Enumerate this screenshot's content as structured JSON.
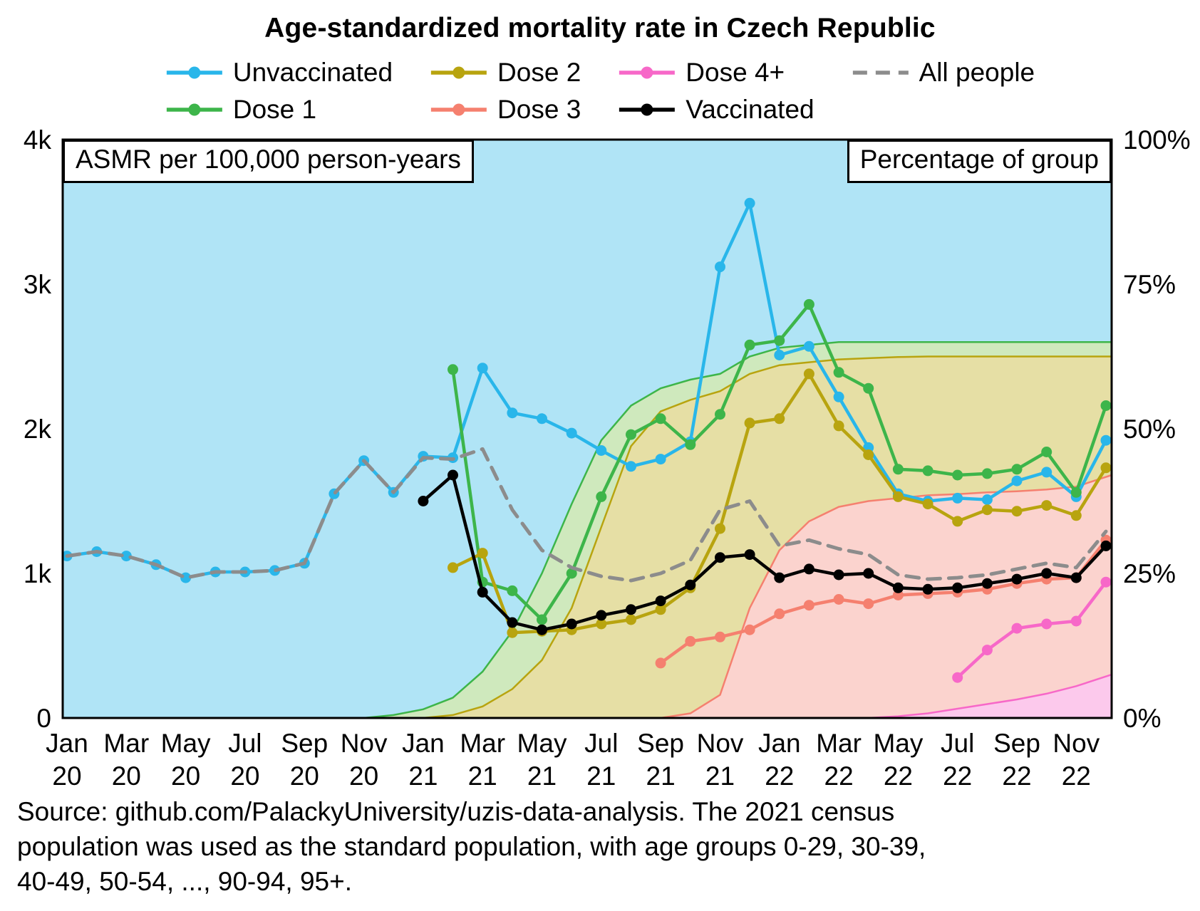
{
  "source_lines": [
    "Source: github.com/PalackyUniversity/uzis-data-analysis. The 2021 census",
    "population was used as the standard population, with age groups 0-29, 30-39,",
    "40-49, 50-54, ..., 90-94, 95+."
  ],
  "chart_data": {
    "type": "line",
    "title": "Age-standardized mortality rate in Czech Republic",
    "left_axis_label": "ASMR per 100,000 person-years",
    "right_axis_label": "Percentage of group",
    "legend_position": "top",
    "grid": false,
    "left_ylim": [
      0,
      4000
    ],
    "right_ylim": [
      0,
      100
    ],
    "left_yticks": [
      {
        "value": 0,
        "label": "0"
      },
      {
        "value": 1000,
        "label": "1k"
      },
      {
        "value": 2000,
        "label": "2k"
      },
      {
        "value": 3000,
        "label": "3k"
      },
      {
        "value": 4000,
        "label": "4k"
      }
    ],
    "right_yticks": [
      {
        "value": 0,
        "label": "0%"
      },
      {
        "value": 25,
        "label": "25%"
      },
      {
        "value": 50,
        "label": "50%"
      },
      {
        "value": 75,
        "label": "75%"
      },
      {
        "value": 100,
        "label": "100%"
      }
    ],
    "x": [
      "Jan 20",
      "Feb 20",
      "Mar 20",
      "Apr 20",
      "May 20",
      "Jun 20",
      "Jul 20",
      "Aug 20",
      "Sep 20",
      "Oct 20",
      "Nov 20",
      "Dec 20",
      "Jan 21",
      "Feb 21",
      "Mar 21",
      "Apr 21",
      "May 21",
      "Jun 21",
      "Jul 21",
      "Aug 21",
      "Sep 21",
      "Oct 21",
      "Nov 21",
      "Dec 21",
      "Jan 22",
      "Feb 22",
      "Mar 22",
      "Apr 22",
      "May 22",
      "Jun 22",
      "Jul 22",
      "Aug 22",
      "Sep 22",
      "Oct 22",
      "Nov 22",
      "Dec 22"
    ],
    "x_ticks": [
      {
        "index": 0,
        "line1": "Jan",
        "line2": "20"
      },
      {
        "index": 2,
        "line1": "Mar",
        "line2": "20"
      },
      {
        "index": 4,
        "line1": "May",
        "line2": "20"
      },
      {
        "index": 6,
        "line1": "Jul",
        "line2": "20"
      },
      {
        "index": 8,
        "line1": "Sep",
        "line2": "20"
      },
      {
        "index": 10,
        "line1": "Nov",
        "line2": "20"
      },
      {
        "index": 12,
        "line1": "Jan",
        "line2": "21"
      },
      {
        "index": 14,
        "line1": "Mar",
        "line2": "21"
      },
      {
        "index": 16,
        "line1": "May",
        "line2": "21"
      },
      {
        "index": 18,
        "line1": "Jul",
        "line2": "21"
      },
      {
        "index": 20,
        "line1": "Sep",
        "line2": "21"
      },
      {
        "index": 22,
        "line1": "Nov",
        "line2": "21"
      },
      {
        "index": 24,
        "line1": "Jan",
        "line2": "22"
      },
      {
        "index": 26,
        "line1": "Mar",
        "line2": "22"
      },
      {
        "index": 28,
        "line1": "May",
        "line2": "22"
      },
      {
        "index": 30,
        "line1": "Jul",
        "line2": "22"
      },
      {
        "index": 32,
        "line1": "Sep",
        "line2": "22"
      },
      {
        "index": 34,
        "line1": "Nov",
        "line2": "22"
      }
    ],
    "series": [
      {
        "id": "unvaccinated",
        "name": "Unvaccinated",
        "color": "#29b6ea",
        "marker": true,
        "dashed": false,
        "axis": "left",
        "values": [
          1120,
          1150,
          1120,
          1060,
          970,
          1010,
          1010,
          1020,
          1070,
          1550,
          1780,
          1560,
          1810,
          1800,
          2420,
          2110,
          2070,
          1970,
          1850,
          1740,
          1790,
          1910,
          3120,
          3560,
          2510,
          2570,
          2220,
          1870,
          1550,
          1500,
          1520,
          1510,
          1640,
          1700,
          1530,
          1920
        ]
      },
      {
        "id": "dose1",
        "name": "Dose 1",
        "color": "#3db54a",
        "marker": true,
        "dashed": false,
        "axis": "left",
        "values": [
          null,
          null,
          null,
          null,
          null,
          null,
          null,
          null,
          null,
          null,
          null,
          null,
          null,
          2410,
          940,
          880,
          680,
          1000,
          1530,
          1960,
          2070,
          1890,
          2100,
          2580,
          2610,
          2860,
          2390,
          2280,
          1720,
          1710,
          1680,
          1690,
          1720,
          1840,
          1560,
          2160
        ]
      },
      {
        "id": "dose2",
        "name": "Dose 2",
        "color": "#b8a40f",
        "marker": true,
        "dashed": false,
        "axis": "left",
        "values": [
          null,
          null,
          null,
          null,
          null,
          null,
          null,
          null,
          null,
          null,
          null,
          null,
          null,
          1040,
          1140,
          590,
          600,
          610,
          650,
          680,
          750,
          900,
          1310,
          2040,
          2070,
          2380,
          2020,
          1820,
          1530,
          1480,
          1360,
          1440,
          1430,
          1470,
          1400,
          1730
        ]
      },
      {
        "id": "dose3",
        "name": "Dose 3",
        "color": "#f5806f",
        "marker": true,
        "dashed": false,
        "axis": "left",
        "values": [
          null,
          null,
          null,
          null,
          null,
          null,
          null,
          null,
          null,
          null,
          null,
          null,
          null,
          null,
          null,
          null,
          null,
          null,
          null,
          null,
          380,
          530,
          560,
          610,
          720,
          780,
          820,
          790,
          850,
          860,
          870,
          890,
          930,
          960,
          970,
          1230
        ]
      },
      {
        "id": "dose4plus",
        "name": "Dose 4+",
        "color": "#f768c8",
        "marker": true,
        "dashed": false,
        "axis": "left",
        "values": [
          null,
          null,
          null,
          null,
          null,
          null,
          null,
          null,
          null,
          null,
          null,
          null,
          null,
          null,
          null,
          null,
          null,
          null,
          null,
          null,
          null,
          null,
          null,
          null,
          null,
          null,
          null,
          null,
          null,
          null,
          280,
          470,
          620,
          650,
          670,
          940
        ]
      },
      {
        "id": "all_people",
        "name": "All people",
        "color": "#8c8c8c",
        "marker": false,
        "dashed": true,
        "axis": "left",
        "values": [
          1120,
          1150,
          1120,
          1060,
          970,
          1010,
          1010,
          1020,
          1070,
          1550,
          1780,
          1560,
          1800,
          1790,
          1860,
          1440,
          1160,
          1040,
          980,
          950,
          1000,
          1090,
          1440,
          1500,
          1190,
          1230,
          1170,
          1130,
          990,
          960,
          970,
          990,
          1030,
          1070,
          1040,
          1290
        ]
      },
      {
        "id": "vaccinated",
        "name": "Vaccinated",
        "color": "#000000",
        "marker": true,
        "dashed": false,
        "axis": "left",
        "values": [
          null,
          null,
          null,
          null,
          null,
          null,
          null,
          null,
          null,
          null,
          null,
          null,
          1500,
          1680,
          870,
          660,
          610,
          650,
          710,
          750,
          810,
          920,
          1110,
          1130,
          970,
          1030,
          990,
          1000,
          900,
          890,
          900,
          930,
          960,
          1000,
          970,
          1190
        ]
      }
    ],
    "legend_columns": [
      [
        0,
        1
      ],
      [
        2,
        3
      ],
      [
        4,
        6
      ],
      [
        5
      ]
    ],
    "area_series": [
      {
        "id": "unvaccinated_share",
        "name": "Unvaccinated share",
        "fill": "#b0e4f6",
        "stroke": null,
        "axis": "right",
        "values": [
          100,
          100,
          100,
          100,
          100,
          100,
          100,
          100,
          100,
          100,
          100,
          100,
          100,
          100,
          100,
          100,
          100,
          100,
          100,
          100,
          100,
          100,
          100,
          100,
          100,
          100,
          100,
          100,
          100,
          100,
          100,
          100,
          100,
          100,
          100,
          100
        ]
      },
      {
        "id": "dose1_share",
        "name": "Dose 1 share",
        "fill": "#cfe9bd",
        "stroke": "#3db54a",
        "axis": "right",
        "values": [
          0,
          0,
          0,
          0,
          0,
          0,
          0,
          0,
          0,
          0,
          0,
          0.5,
          1.5,
          3.5,
          8,
          15,
          25,
          37,
          48,
          54,
          57,
          58.5,
          59.5,
          62.5,
          64,
          64.5,
          65,
          65,
          65,
          65,
          65,
          65,
          65,
          65,
          65,
          65
        ]
      },
      {
        "id": "dose2_share",
        "name": "Dose 2 share",
        "fill": "#e6dfa5",
        "stroke": "#b8a40f",
        "axis": "right",
        "values": [
          0,
          0,
          0,
          0,
          0,
          0,
          0,
          0,
          0,
          0,
          0,
          0,
          0,
          0.5,
          2,
          5,
          10,
          19,
          33,
          47,
          53,
          55,
          56.5,
          59.5,
          61,
          61.5,
          62,
          62.2,
          62.4,
          62.5,
          62.5,
          62.5,
          62.5,
          62.5,
          62.5,
          62.5
        ]
      },
      {
        "id": "dose3_share",
        "name": "Dose 3 share",
        "fill": "#fbd3ce",
        "stroke": "#f5806f",
        "axis": "right",
        "values": [
          0,
          0,
          0,
          0,
          0,
          0,
          0,
          0,
          0,
          0,
          0,
          0,
          0,
          0,
          0,
          0,
          0,
          0,
          0,
          0,
          0,
          0.8,
          4,
          19,
          29,
          34,
          36.5,
          37.5,
          38,
          38.5,
          38.7,
          39,
          39.2,
          39.5,
          40,
          42
        ]
      },
      {
        "id": "dose4plus_share",
        "name": "Dose 4+ share",
        "fill": "#fcc9ec",
        "stroke": "#f768c8",
        "axis": "right",
        "values": [
          0,
          0,
          0,
          0,
          0,
          0,
          0,
          0,
          0,
          0,
          0,
          0,
          0,
          0,
          0,
          0,
          0,
          0,
          0,
          0,
          0,
          0,
          0,
          0,
          0,
          0,
          0,
          0,
          0.3,
          0.8,
          1.6,
          2.4,
          3.2,
          4.2,
          5.5,
          7.5
        ]
      }
    ]
  }
}
